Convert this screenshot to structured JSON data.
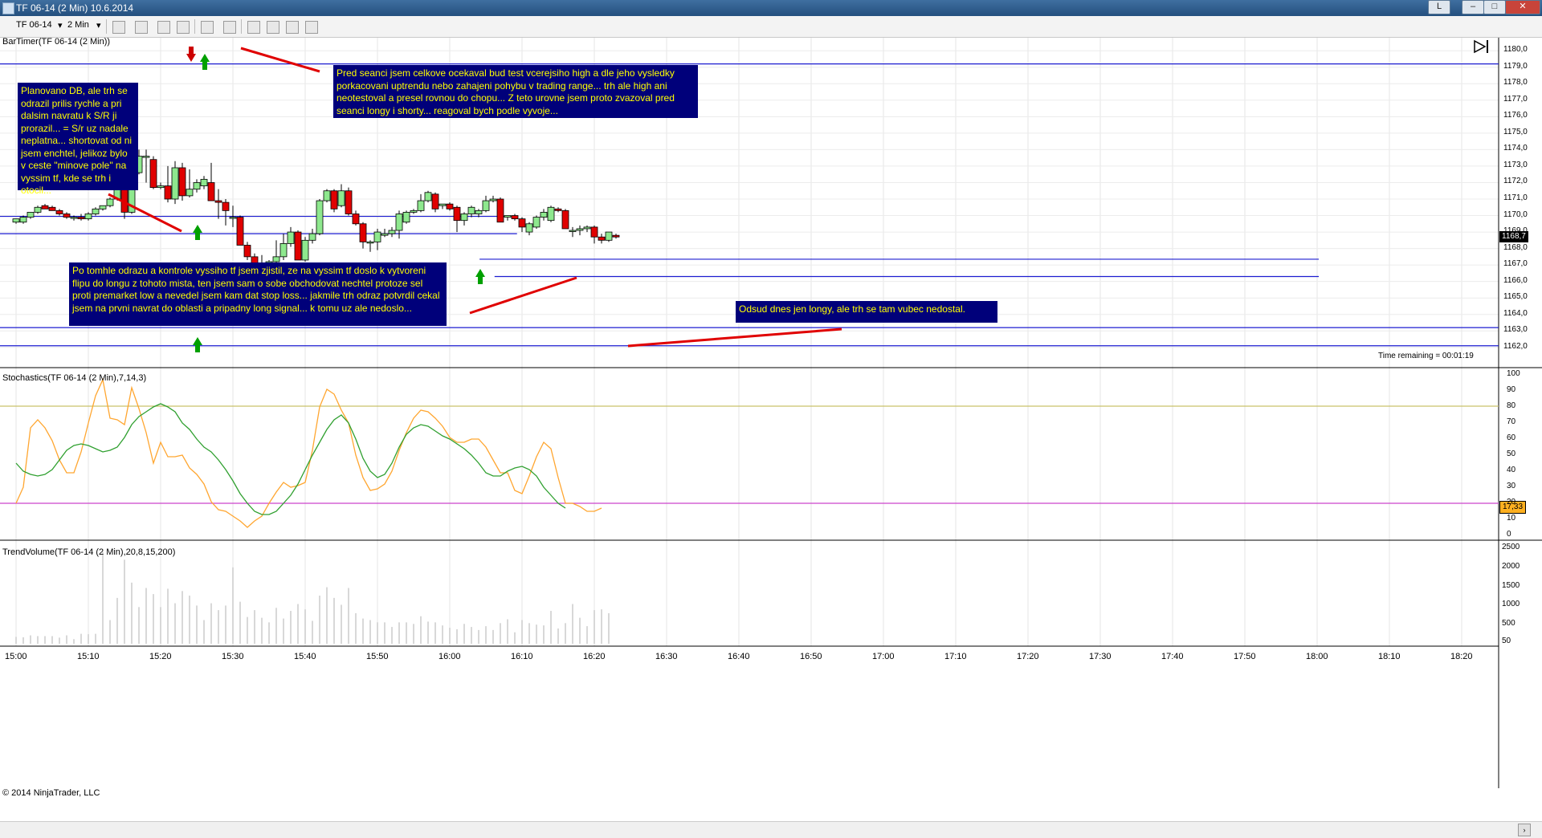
{
  "window": {
    "title": "TF 06-14 (2 Min)  10.6.2014",
    "min_label": "L",
    "colors": {
      "bg": "#ffffff",
      "bull": "#8ee88e",
      "bear": "#e00000",
      "line": "#0000cc"
    }
  },
  "toolbar": {
    "instrument": "TF 06-14",
    "interval": "2 Min",
    "icons": [
      "bar-type-icon",
      "pencil-icon",
      "add-indicator-icon",
      "strategy-icon",
      "crosshair-icon",
      "zoom-icon",
      "data-box-icon",
      "grid-icon",
      "print-icon",
      "properties-icon"
    ]
  },
  "main_panel": {
    "label": "BarTimer(TF 06-14 (2 Min))",
    "time_remaining": "Time remaining = 00:01:19",
    "price_tag": "1168,7",
    "y_labels": [
      "1180,0",
      "1179,0",
      "1178,0",
      "1177,0",
      "1176,0",
      "1175,0",
      "1174,0",
      "1173,0",
      "1172,0",
      "1171,0",
      "1170,0",
      "1169,0",
      "1168,0",
      "1167,0",
      "1166,0",
      "1165,0",
      "1164,0",
      "1163,0",
      "1162,0"
    ],
    "y_range": [
      1161.6,
      1180.4
    ],
    "candles": [
      {
        "o": 1169.6,
        "h": 1169.8,
        "l": 1169.5,
        "c": 1169.8
      },
      {
        "o": 1169.6,
        "h": 1170.0,
        "l": 1169.5,
        "c": 1169.9
      },
      {
        "o": 1169.9,
        "h": 1170.2,
        "l": 1169.8,
        "c": 1170.2
      },
      {
        "o": 1170.2,
        "h": 1170.6,
        "l": 1170.1,
        "c": 1170.5
      },
      {
        "o": 1170.6,
        "h": 1170.7,
        "l": 1170.4,
        "c": 1170.4
      },
      {
        "o": 1170.5,
        "h": 1170.6,
        "l": 1170.3,
        "c": 1170.3
      },
      {
        "o": 1170.3,
        "h": 1170.4,
        "l": 1170.0,
        "c": 1170.1
      },
      {
        "o": 1170.1,
        "h": 1170.2,
        "l": 1169.8,
        "c": 1169.9
      },
      {
        "o": 1169.9,
        "h": 1170.0,
        "l": 1169.7,
        "c": 1169.9
      },
      {
        "o": 1169.9,
        "h": 1170.1,
        "l": 1169.7,
        "c": 1169.8
      },
      {
        "o": 1169.8,
        "h": 1170.2,
        "l": 1169.7,
        "c": 1170.1
      },
      {
        "o": 1170.1,
        "h": 1170.5,
        "l": 1170.0,
        "c": 1170.4
      },
      {
        "o": 1170.4,
        "h": 1170.6,
        "l": 1170.3,
        "c": 1170.6
      },
      {
        "o": 1170.6,
        "h": 1171.1,
        "l": 1170.5,
        "c": 1171.0
      },
      {
        "o": 1171.0,
        "h": 1171.9,
        "l": 1170.9,
        "c": 1171.8
      },
      {
        "o": 1171.8,
        "h": 1171.9,
        "l": 1169.8,
        "c": 1170.2
      },
      {
        "o": 1170.2,
        "h": 1172.8,
        "l": 1170.1,
        "c": 1172.6
      },
      {
        "o": 1172.6,
        "h": 1174.0,
        "l": 1172.5,
        "c": 1173.6
      },
      {
        "o": 1173.6,
        "h": 1174.0,
        "l": 1172.0,
        "c": 1173.6
      },
      {
        "o": 1173.4,
        "h": 1173.6,
        "l": 1171.6,
        "c": 1171.7
      },
      {
        "o": 1171.7,
        "h": 1172.0,
        "l": 1171.6,
        "c": 1171.8
      },
      {
        "o": 1171.8,
        "h": 1173.0,
        "l": 1170.8,
        "c": 1171.0
      },
      {
        "o": 1171.0,
        "h": 1173.3,
        "l": 1170.7,
        "c": 1172.9
      },
      {
        "o": 1172.9,
        "h": 1173.2,
        "l": 1170.9,
        "c": 1171.2
      },
      {
        "o": 1171.2,
        "h": 1172.8,
        "l": 1171.1,
        "c": 1171.6
      },
      {
        "o": 1171.6,
        "h": 1172.2,
        "l": 1171.4,
        "c": 1172.0
      },
      {
        "o": 1171.8,
        "h": 1172.4,
        "l": 1171.6,
        "c": 1172.2
      },
      {
        "o": 1172.0,
        "h": 1173.2,
        "l": 1171.0,
        "c": 1170.9
      },
      {
        "o": 1170.9,
        "h": 1171.6,
        "l": 1169.8,
        "c": 1170.8
      },
      {
        "o": 1170.8,
        "h": 1171.0,
        "l": 1169.4,
        "c": 1170.3
      },
      {
        "o": 1169.9,
        "h": 1170.6,
        "l": 1169.3,
        "c": 1169.9
      },
      {
        "o": 1169.9,
        "h": 1170.0,
        "l": 1168.2,
        "c": 1168.2
      },
      {
        "o": 1168.2,
        "h": 1168.4,
        "l": 1167.3,
        "c": 1167.5
      },
      {
        "o": 1167.5,
        "h": 1167.7,
        "l": 1166.6,
        "c": 1166.7
      },
      {
        "o": 1166.7,
        "h": 1167.6,
        "l": 1166.4,
        "c": 1167.0
      },
      {
        "o": 1167.0,
        "h": 1167.3,
        "l": 1166.8,
        "c": 1167.2
      },
      {
        "o": 1167.2,
        "h": 1168.5,
        "l": 1167.0,
        "c": 1167.5
      },
      {
        "o": 1167.5,
        "h": 1168.9,
        "l": 1167.3,
        "c": 1168.3
      },
      {
        "o": 1168.3,
        "h": 1169.3,
        "l": 1168.1,
        "c": 1169.0
      },
      {
        "o": 1169.0,
        "h": 1169.1,
        "l": 1167.3,
        "c": 1167.3
      },
      {
        "o": 1167.3,
        "h": 1168.7,
        "l": 1167.2,
        "c": 1168.5
      },
      {
        "o": 1168.5,
        "h": 1169.2,
        "l": 1168.3,
        "c": 1168.9
      },
      {
        "o": 1168.9,
        "h": 1171.0,
        "l": 1168.8,
        "c": 1170.9
      },
      {
        "o": 1170.9,
        "h": 1171.6,
        "l": 1170.8,
        "c": 1171.5
      },
      {
        "o": 1171.5,
        "h": 1171.6,
        "l": 1170.2,
        "c": 1170.4
      },
      {
        "o": 1170.6,
        "h": 1171.9,
        "l": 1170.5,
        "c": 1171.5
      },
      {
        "o": 1171.5,
        "h": 1171.7,
        "l": 1170.0,
        "c": 1170.1
      },
      {
        "o": 1170.1,
        "h": 1170.3,
        "l": 1169.4,
        "c": 1169.5
      },
      {
        "o": 1169.5,
        "h": 1169.6,
        "l": 1168.0,
        "c": 1168.4
      },
      {
        "o": 1168.4,
        "h": 1168.5,
        "l": 1167.8,
        "c": 1168.4
      },
      {
        "o": 1168.4,
        "h": 1169.2,
        "l": 1167.9,
        "c": 1169.0
      },
      {
        "o": 1168.8,
        "h": 1169.2,
        "l": 1168.7,
        "c": 1168.9
      },
      {
        "o": 1168.9,
        "h": 1169.3,
        "l": 1168.7,
        "c": 1169.1
      },
      {
        "o": 1169.1,
        "h": 1170.3,
        "l": 1168.6,
        "c": 1170.1
      },
      {
        "o": 1169.6,
        "h": 1170.3,
        "l": 1169.5,
        "c": 1170.2
      },
      {
        "o": 1170.2,
        "h": 1170.4,
        "l": 1170.1,
        "c": 1170.3
      },
      {
        "o": 1170.3,
        "h": 1171.3,
        "l": 1170.2,
        "c": 1170.9
      },
      {
        "o": 1170.9,
        "h": 1171.5,
        "l": 1170.8,
        "c": 1171.4
      },
      {
        "o": 1171.3,
        "h": 1171.4,
        "l": 1170.2,
        "c": 1170.4
      },
      {
        "o": 1170.6,
        "h": 1170.7,
        "l": 1170.4,
        "c": 1170.7
      },
      {
        "o": 1170.7,
        "h": 1170.8,
        "l": 1170.3,
        "c": 1170.4
      },
      {
        "o": 1170.5,
        "h": 1170.6,
        "l": 1169.0,
        "c": 1169.7
      },
      {
        "o": 1169.7,
        "h": 1170.2,
        "l": 1169.4,
        "c": 1170.1
      },
      {
        "o": 1170.1,
        "h": 1170.6,
        "l": 1169.9,
        "c": 1170.5
      },
      {
        "o": 1170.1,
        "h": 1170.4,
        "l": 1169.9,
        "c": 1170.3
      },
      {
        "o": 1170.3,
        "h": 1171.2,
        "l": 1170.2,
        "c": 1170.9
      },
      {
        "o": 1170.9,
        "h": 1171.2,
        "l": 1170.8,
        "c": 1171.0
      },
      {
        "o": 1171.0,
        "h": 1171.1,
        "l": 1169.6,
        "c": 1169.6
      },
      {
        "o": 1169.9,
        "h": 1170.0,
        "l": 1169.7,
        "c": 1170.0
      },
      {
        "o": 1170.0,
        "h": 1170.1,
        "l": 1169.7,
        "c": 1169.8
      },
      {
        "o": 1169.8,
        "h": 1169.9,
        "l": 1169.0,
        "c": 1169.3
      },
      {
        "o": 1169.0,
        "h": 1169.6,
        "l": 1168.8,
        "c": 1169.5
      },
      {
        "o": 1169.3,
        "h": 1170.0,
        "l": 1169.2,
        "c": 1169.9
      },
      {
        "o": 1169.9,
        "h": 1170.4,
        "l": 1169.7,
        "c": 1170.2
      },
      {
        "o": 1169.7,
        "h": 1170.6,
        "l": 1169.6,
        "c": 1170.5
      },
      {
        "o": 1170.4,
        "h": 1170.5,
        "l": 1170.2,
        "c": 1170.3
      },
      {
        "o": 1170.3,
        "h": 1170.4,
        "l": 1169.2,
        "c": 1169.2
      },
      {
        "o": 1169.1,
        "h": 1169.3,
        "l": 1168.7,
        "c": 1169.1
      },
      {
        "o": 1169.1,
        "h": 1169.4,
        "l": 1168.8,
        "c": 1169.2
      },
      {
        "o": 1169.2,
        "h": 1169.4,
        "l": 1169.0,
        "c": 1169.3
      },
      {
        "o": 1169.3,
        "h": 1169.4,
        "l": 1168.3,
        "c": 1168.7
      },
      {
        "o": 1168.7,
        "h": 1168.9,
        "l": 1168.3,
        "c": 1168.5
      },
      {
        "o": 1168.5,
        "h": 1169.0,
        "l": 1168.4,
        "c": 1169.0
      },
      {
        "o": 1168.8,
        "h": 1168.9,
        "l": 1168.6,
        "c": 1168.7
      }
    ],
    "levels": [
      {
        "y": 1179.2,
        "x0": 0,
        "x1": 1
      },
      {
        "y": 1169.95,
        "x0": 0,
        "x1": 0.34
      },
      {
        "y": 1168.9,
        "x0": 0,
        "x1": 0.345
      },
      {
        "y": 1167.35,
        "x0": 0.32,
        "x1": 0.88
      },
      {
        "y": 1166.3,
        "x0": 0.33,
        "x1": 0.88
      },
      {
        "y": 1163.2,
        "x0": 0,
        "x1": 1
      },
      {
        "y": 1162.1,
        "x0": 0,
        "x1": 1
      }
    ],
    "notes": [
      "Planovano DB, ale trh se odrazil prilis rychle a pri dalsim navratu k S/R ji prorazil... = S/r uz nadale neplatna... shortovat od ni jsem enchtel, jelikoz bylo v ceste \"minove pole\" na vyssim tf, kde se trh i otocil...",
      "Pred seanci jsem celkove ocekaval bud test vcerejsiho high a dle jeho vysledky porkacovani uptrendu nebo zahajeni pohybu v trading range... trh ale high ani neotestoval a presel rovnou do chopu... Z teto urovne jsem proto zvazoval pred seanci longy i shorty... reagoval bych podle vyvoje...",
      "Po tomhle odrazu a kontrole vyssiho tf jsem zjistil, ze na vyssim tf doslo k vytvoreni flipu do longu z tohoto mista, ten jsem sam o sobe obchodovat nechtel protoze sel proti premarket low a nevedel jsem kam dat stop loss... jakmile trh odraz potvrdil cekal jsem na prvni navrat do oblasti a pripadny long signal... k tomu uz ale nedoslo...",
      "Odsud dnes jen longy, ale trh se tam vubec nedostal."
    ]
  },
  "stoch_panel": {
    "label": "Stochastics(TF 06-14 (2 Min),7,14,3)",
    "y_labels": [
      "100",
      "90",
      "80",
      "70",
      "60",
      "50",
      "40",
      "30",
      "20",
      "10",
      "0"
    ],
    "d_tag": "17,33",
    "k": [
      20,
      30,
      67,
      72,
      67,
      59,
      47,
      39,
      39,
      52,
      70,
      87,
      97,
      73,
      72,
      69,
      92,
      79,
      64,
      45,
      58,
      49,
      49,
      50,
      42,
      38,
      32,
      21,
      16,
      15,
      12,
      9,
      5,
      9,
      12,
      20,
      27,
      33,
      30,
      31,
      33,
      53,
      80,
      91,
      88,
      78,
      70,
      50,
      36,
      28,
      29,
      32,
      40,
      53,
      64,
      73,
      78,
      77,
      73,
      68,
      61,
      58,
      58,
      60,
      60,
      55,
      47,
      39,
      39,
      28,
      26,
      37,
      49,
      58,
      54,
      36,
      20,
      20,
      18,
      15,
      15,
      17
    ],
    "d": [
      45,
      40,
      38,
      37,
      38,
      41,
      47,
      53,
      56,
      57,
      56,
      54,
      52,
      53,
      55,
      61,
      69,
      74,
      77,
      80,
      82,
      80,
      77,
      70,
      66,
      60,
      55,
      52,
      47,
      41,
      34,
      26,
      20,
      15,
      13,
      13,
      15,
      20,
      25,
      32,
      41,
      50,
      58,
      66,
      72,
      75,
      70,
      60,
      48,
      40,
      36,
      38,
      45,
      55,
      63,
      67,
      69,
      68,
      65,
      62,
      60,
      57,
      54,
      50,
      45,
      39,
      37,
      37,
      40,
      42,
      43,
      41,
      37,
      30,
      25,
      20,
      17
    ]
  },
  "volume_panel": {
    "label": "TrendVolume(TF 06-14 (2 Min),20,8,15,200)",
    "y_labels": [
      "2500",
      "2000",
      "1500",
      "1000",
      "500",
      "50"
    ],
    "values": [
      180,
      170,
      220,
      200,
      200,
      200,
      160,
      220,
      120,
      260,
      250,
      260,
      2400,
      620,
      1200,
      2200,
      1600,
      960,
      1460,
      1300,
      960,
      1440,
      1060,
      1380,
      1260,
      1000,
      620,
      1060,
      880,
      1000,
      2000,
      1100,
      700,
      880,
      680,
      560,
      940,
      660,
      860,
      1040,
      900,
      600,
      1260,
      1480,
      1200,
      1020,
      1460,
      800,
      660,
      620,
      560,
      560,
      440,
      560,
      560,
      520,
      720,
      580,
      560,
      480,
      420,
      380,
      520,
      440,
      360,
      460,
      360,
      540,
      640,
      300,
      620,
      540,
      500,
      480,
      860,
      400,
      540,
      1040,
      680,
      460,
      880,
      900,
      800
    ]
  },
  "x_axis": {
    "labels": [
      "15:00",
      "15:10",
      "15:20",
      "15:30",
      "15:40",
      "15:50",
      "16:00",
      "16:10",
      "16:20",
      "16:30",
      "16:40",
      "16:50",
      "17:00",
      "17:10",
      "17:20",
      "17:30",
      "17:40",
      "17:50",
      "18:00",
      "18:10",
      "18:20"
    ]
  },
  "footer": {
    "copyright": "© 2014 NinjaTrader, LLC"
  }
}
